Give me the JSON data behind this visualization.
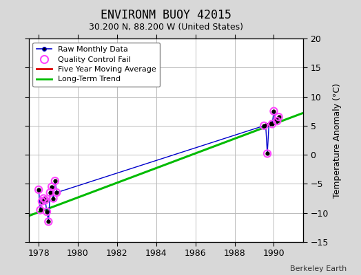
{
  "title": "ENVIRONM BUOY 42015",
  "subtitle": "30.200 N, 88.200 W (United States)",
  "ylabel": "Temperature Anomaly (°C)",
  "credit": "Berkeley Earth",
  "xlim": [
    1977.5,
    1991.5
  ],
  "ylim": [
    -15,
    20
  ],
  "xticks": [
    1978,
    1980,
    1982,
    1984,
    1986,
    1988,
    1990
  ],
  "yticks": [
    -15,
    -10,
    -5,
    0,
    5,
    10,
    15,
    20
  ],
  "bg_color": "#d8d8d8",
  "plot_bg_color": "#ffffff",
  "raw_data_x": [
    1978.0,
    1978.083,
    1978.167,
    1978.25,
    1978.333,
    1978.417,
    1978.5,
    1978.583,
    1978.667,
    1978.75,
    1978.833,
    1978.917,
    1989.5,
    1989.583,
    1989.667,
    1989.75,
    1989.833,
    1989.917,
    1990.0,
    1990.083,
    1990.167,
    1990.25
  ],
  "raw_data_y": [
    -6.0,
    -9.5,
    -8.0,
    -7.5,
    -7.8,
    -9.8,
    -11.5,
    -6.5,
    -5.5,
    -7.5,
    -4.5,
    -6.5,
    5.0,
    5.1,
    0.2,
    5.2,
    5.5,
    5.3,
    7.5,
    6.2,
    5.8,
    6.5
  ],
  "qc_fail_x": [
    1978.0,
    1978.083,
    1978.167,
    1978.25,
    1978.333,
    1978.417,
    1978.5,
    1978.583,
    1978.667,
    1978.75,
    1978.833,
    1978.917,
    1989.5,
    1989.667,
    1989.917,
    1990.0,
    1990.167,
    1990.25
  ],
  "qc_fail_y": [
    -6.0,
    -9.5,
    -8.0,
    -7.5,
    -7.8,
    -9.8,
    -11.5,
    -6.5,
    -5.5,
    -7.5,
    -4.5,
    -6.5,
    5.0,
    0.2,
    5.3,
    7.5,
    5.8,
    6.5
  ],
  "trend_x": [
    1977.5,
    1991.5
  ],
  "trend_y": [
    -10.5,
    7.2
  ],
  "raw_color": "#0000cc",
  "raw_marker_color": "#000000",
  "qc_color": "#ff44ff",
  "trend_color": "#00bb00",
  "mavg_color": "#dd0000",
  "grid_color": "#bbbbbb",
  "title_fontsize": 12,
  "subtitle_fontsize": 9,
  "tick_fontsize": 9,
  "ylabel_fontsize": 9,
  "legend_fontsize": 8,
  "credit_fontsize": 8
}
